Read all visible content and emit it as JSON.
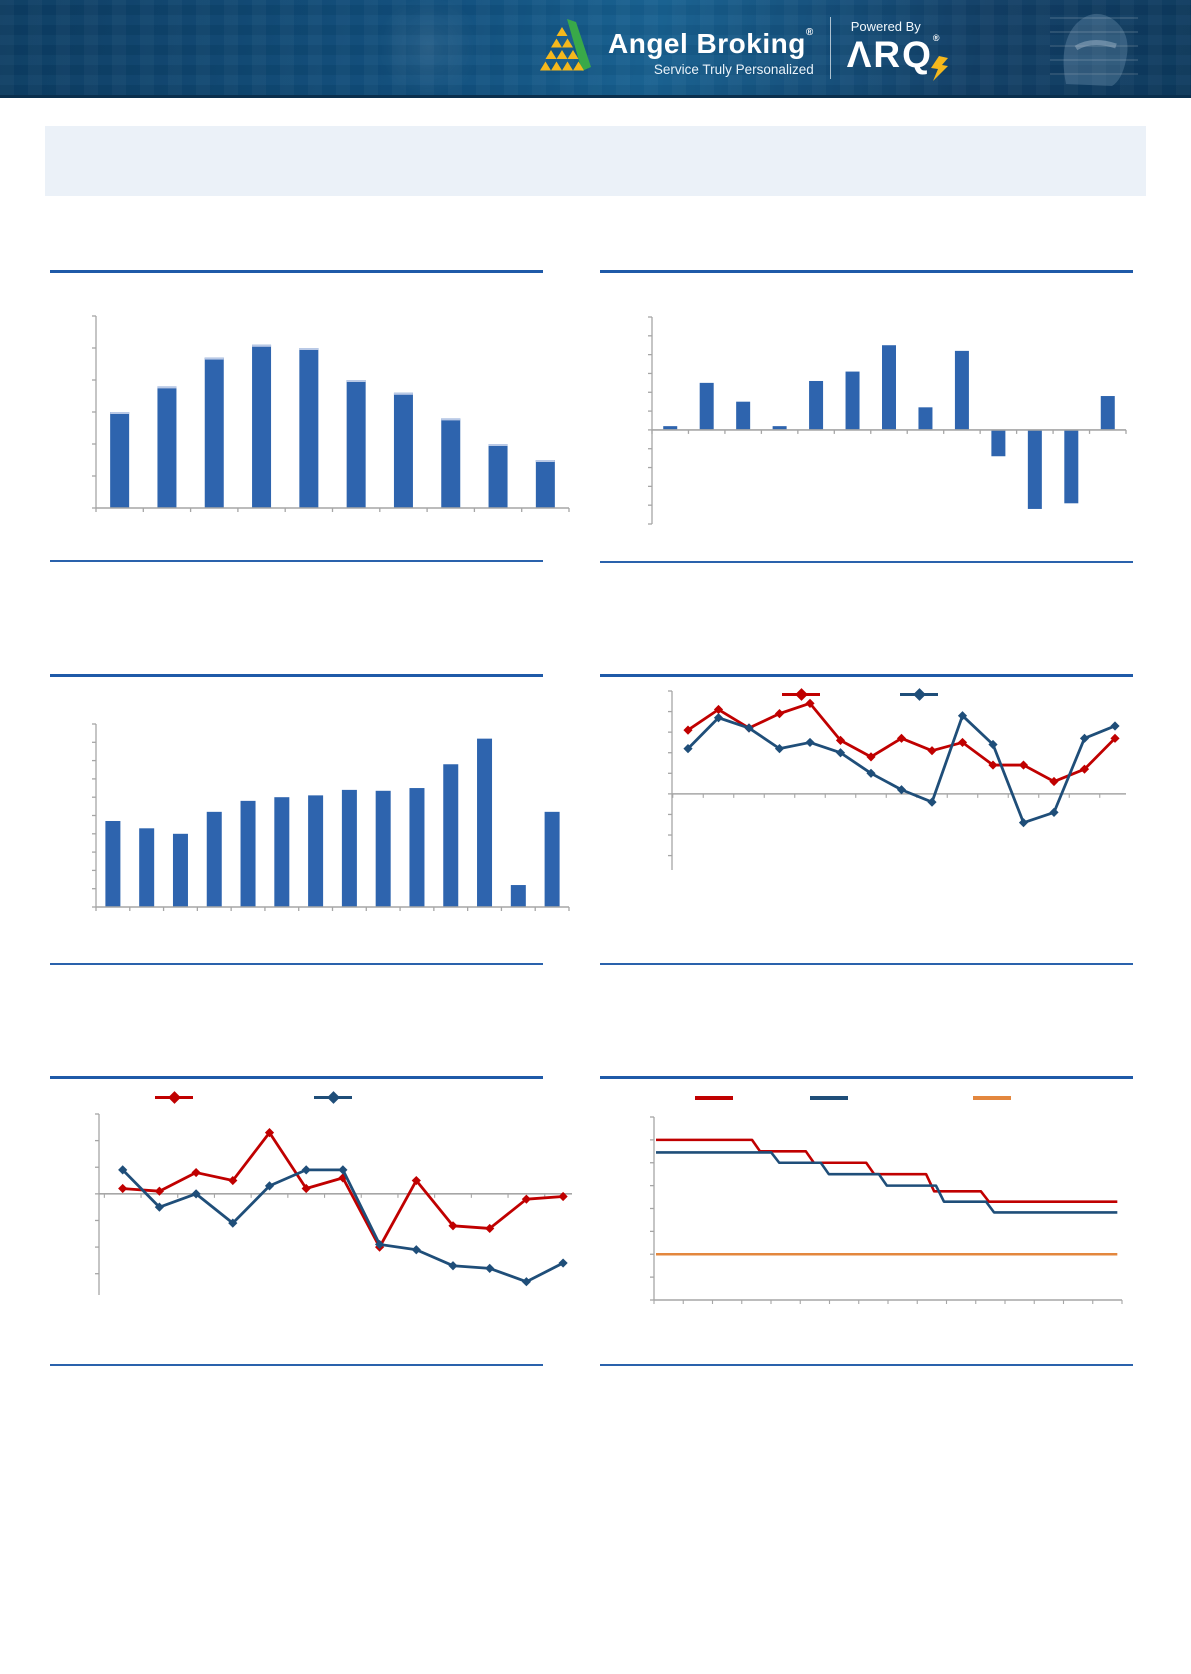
{
  "header": {
    "brand": "Angel Broking",
    "brand_reg": "®",
    "tagline": "Service Truly Personalized",
    "powered_by": "Powered By",
    "arq": "ΛRQ",
    "arq_reg": "®"
  },
  "colors": {
    "rule_blue": "#1F5AA8",
    "bar_blue": "#2E64AE",
    "bar_highlight": "#B9C9E6",
    "series_red": "#C00000",
    "series_navy": "#1F4E79",
    "series_orange": "#E3873E",
    "axis_gray": "#A6A6A6",
    "header_bg": "#11507E",
    "logo_yellow": "#F5B81C",
    "logo_green": "#39A949",
    "title_band_bg": "#EBF1F8"
  },
  "chart_data": [
    {
      "id": "bar-chart-top-left",
      "type": "bar",
      "values": [
        3.0,
        3.8,
        4.7,
        5.1,
        5.0,
        4.0,
        3.6,
        2.8,
        2.0,
        1.5
      ],
      "ylim": [
        0,
        6
      ],
      "ytick": 1,
      "grid": false,
      "legend": "none"
    },
    {
      "id": "bar-chart-top-right",
      "type": "bar",
      "values": [
        0.2,
        2.5,
        1.5,
        0.2,
        2.6,
        3.1,
        4.5,
        1.2,
        4.2,
        -1.4,
        -4.2,
        -3.9,
        1.8
      ],
      "ylim": [
        -5,
        6
      ],
      "ytick": 1,
      "grid": false,
      "legend": "none"
    },
    {
      "id": "bar-chart-mid-left",
      "type": "bar",
      "values": [
        4.7,
        4.3,
        4.0,
        5.2,
        5.8,
        6.0,
        6.1,
        6.4,
        6.35,
        6.5,
        7.8,
        9.2,
        1.2,
        5.2
      ],
      "ylim": [
        0,
        10
      ],
      "ytick": 1,
      "grid": false,
      "legend": "none"
    },
    {
      "id": "line-chart-mid-right",
      "type": "line",
      "series": [
        {
          "name": "red-series",
          "color": "#C00000",
          "values": [
            3.1,
            4.1,
            3.2,
            3.9,
            4.4,
            2.6,
            1.8,
            2.7,
            2.1,
            2.5,
            1.4,
            1.4,
            0.6,
            1.2,
            2.7
          ]
        },
        {
          "name": "navy-series",
          "color": "#1F4E79",
          "values": [
            2.2,
            3.7,
            3.2,
            2.2,
            2.5,
            2.0,
            1.0,
            0.2,
            -0.4,
            3.8,
            2.4,
            -1.4,
            -0.9,
            2.7,
            3.3
          ]
        }
      ],
      "ylim": [
        -3.7,
        5
      ],
      "ytick": 1,
      "grid": false,
      "legend": "top-inline"
    },
    {
      "id": "line-chart-bottom-left",
      "type": "line",
      "series": [
        {
          "name": "red-series",
          "color": "#C00000",
          "values": [
            0.2,
            0.1,
            0.8,
            0.5,
            2.3,
            0.2,
            0.6,
            -2.0,
            0.5,
            -1.2,
            -1.3,
            -0.2,
            -0.1
          ]
        },
        {
          "name": "navy-series",
          "color": "#1F4E79",
          "values": [
            0.9,
            -0.5,
            0.0,
            -1.1,
            0.3,
            0.9,
            0.9,
            -1.9,
            -2.1,
            -2.7,
            -2.8,
            -3.3,
            -2.6
          ]
        }
      ],
      "ylim": [
        -3.8,
        3
      ],
      "ytick": 1,
      "grid": false,
      "legend": "top-inline"
    },
    {
      "id": "step-chart-bottom-right",
      "type": "step",
      "series": [
        {
          "name": "red-step",
          "color": "#C00000",
          "levels": [
            7.0,
            6.5,
            6.0,
            5.5,
            4.75,
            4.3
          ],
          "breaks": [
            0.218,
            0.333,
            0.462,
            0.59,
            0.707
          ]
        },
        {
          "name": "navy-step",
          "color": "#1F4E79",
          "levels": [
            6.45,
            6.0,
            5.5,
            5.0,
            4.3,
            3.83
          ],
          "breaks": [
            0.259,
            0.365,
            0.489,
            0.611,
            0.718
          ]
        },
        {
          "name": "orange-flat",
          "color": "#E3873E",
          "levels": [
            2.0
          ],
          "breaks": []
        }
      ],
      "ylim": [
        0,
        8
      ],
      "ytick": 1,
      "xticks": 16,
      "grid": false,
      "legend": "top-inline"
    }
  ]
}
